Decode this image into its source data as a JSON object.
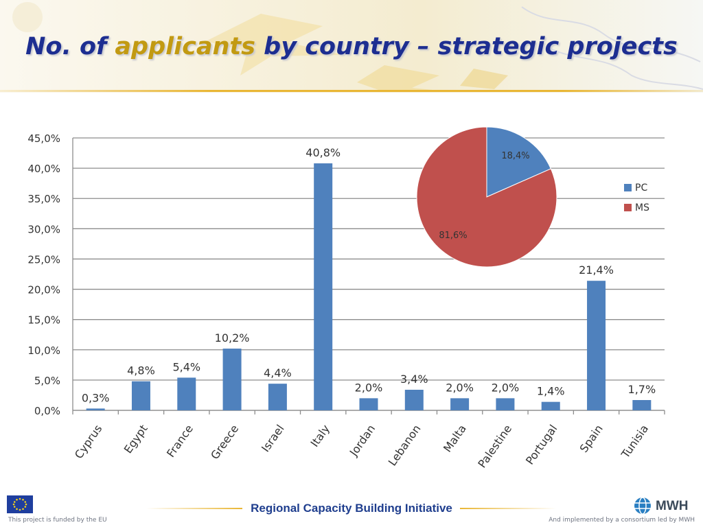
{
  "slide": {
    "title_before": "No. of ",
    "title_highlight": "applicants",
    "title_after": " by country – strategic projects"
  },
  "footer": {
    "left_text": "This project is funded by the EU",
    "center_text": "Regional Capacity Building Initiative",
    "right_text": "And implemented by a consortium led by MWH",
    "logo_text": "MWH",
    "eu_flag_icon": "eu-flag-icon",
    "mwh_globe_icon": "globe-icon"
  },
  "colors": {
    "title": "#1d2e91",
    "title_highlight": "#c29a12",
    "bar": "#4f81bd",
    "pc": "#4f81bd",
    "ms": "#c0504d",
    "footer_text": "#1f3e8e"
  },
  "chart_data": [
    {
      "type": "bar",
      "categories": [
        "Cyprus",
        "Egypt",
        "France",
        "Greece",
        "Israel",
        "Italy",
        "Jordan",
        "Lebanon",
        "Malta",
        "Palestine",
        "Portugal",
        "Spain",
        "Tunisia"
      ],
      "values": [
        0.3,
        4.8,
        5.4,
        10.2,
        4.4,
        40.8,
        2.0,
        3.4,
        2.0,
        2.0,
        1.4,
        21.4,
        1.7
      ],
      "data_labels": [
        "0,3%",
        "4,8%",
        "5,4%",
        "10,2%",
        "4,4%",
        "40,8%",
        "2,0%",
        "3,4%",
        "2,0%",
        "2,0%",
        "1,4%",
        "21,4%",
        "1,7%"
      ],
      "y_ticks": [
        "0,0%",
        "5,0%",
        "10,0%",
        "15,0%",
        "20,0%",
        "25,0%",
        "30,0%",
        "35,0%",
        "40,0%",
        "45,0%"
      ],
      "ylim": [
        0,
        45
      ],
      "grid": true,
      "title": "",
      "xlabel": "",
      "ylabel": ""
    },
    {
      "type": "pie",
      "labels": [
        "PC",
        "MS"
      ],
      "values": [
        18.4,
        81.6
      ],
      "data_labels": [
        "18,4%",
        "81,6%"
      ],
      "legend": "right"
    }
  ]
}
